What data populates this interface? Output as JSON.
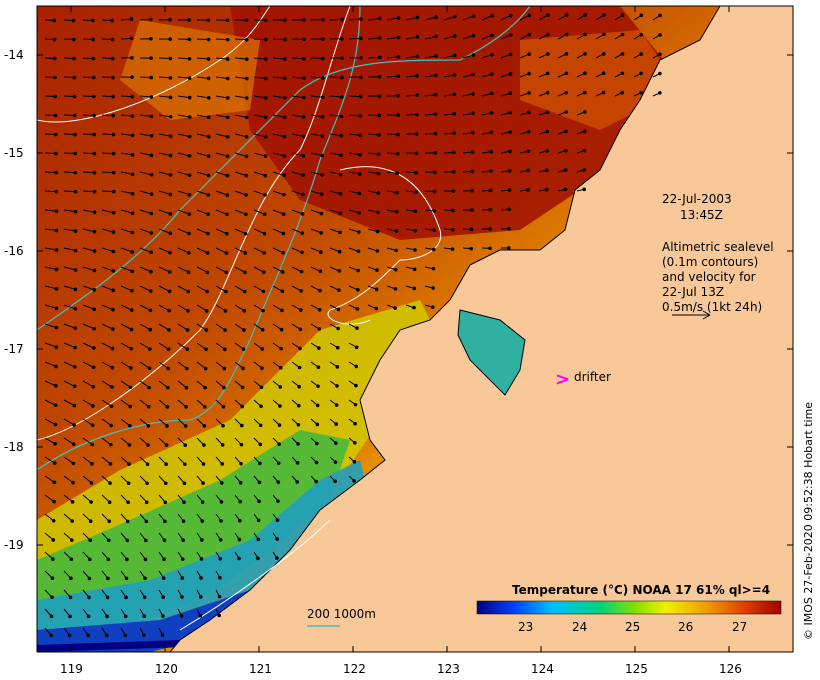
{
  "map": {
    "date_line": "22-Jul-2003",
    "time_line": "13:45Z",
    "legend_lines": [
      "Altimetric sealevel",
      "(0.1m contours)",
      "and velocity for",
      "22-Jul 13Z",
      "0.5m/s (1kt 24h)"
    ],
    "drifter_label": "drifter",
    "depth_legend": "200 1000m",
    "colorbar_title": "Temperature (°C) NOAA 17 61% ql>=4",
    "colorbar_ticks": [
      "23",
      "24",
      "25",
      "26",
      "27"
    ],
    "lat_ticks": [
      "-14",
      "-15",
      "-16",
      "-17",
      "-18",
      "-19"
    ],
    "lon_ticks": [
      "119",
      "120",
      "121",
      "122",
      "123",
      "124",
      "125",
      "126"
    ],
    "credit": "© IMOS 27-Feb-2020 09:52:38 Hobart time",
    "colors": {
      "land": "#f8c898",
      "warm_deep": "#a01800",
      "warm": "#c04000",
      "orange": "#e07000",
      "yellow": "#f0d000",
      "green": "#40c040",
      "cyan": "#20c0c0",
      "blue": "#0040d0",
      "deep_blue": "#000080",
      "contour_white": "#ffffff",
      "isobath": "#40c0c0",
      "drifter": "#ff00ff"
    }
  }
}
